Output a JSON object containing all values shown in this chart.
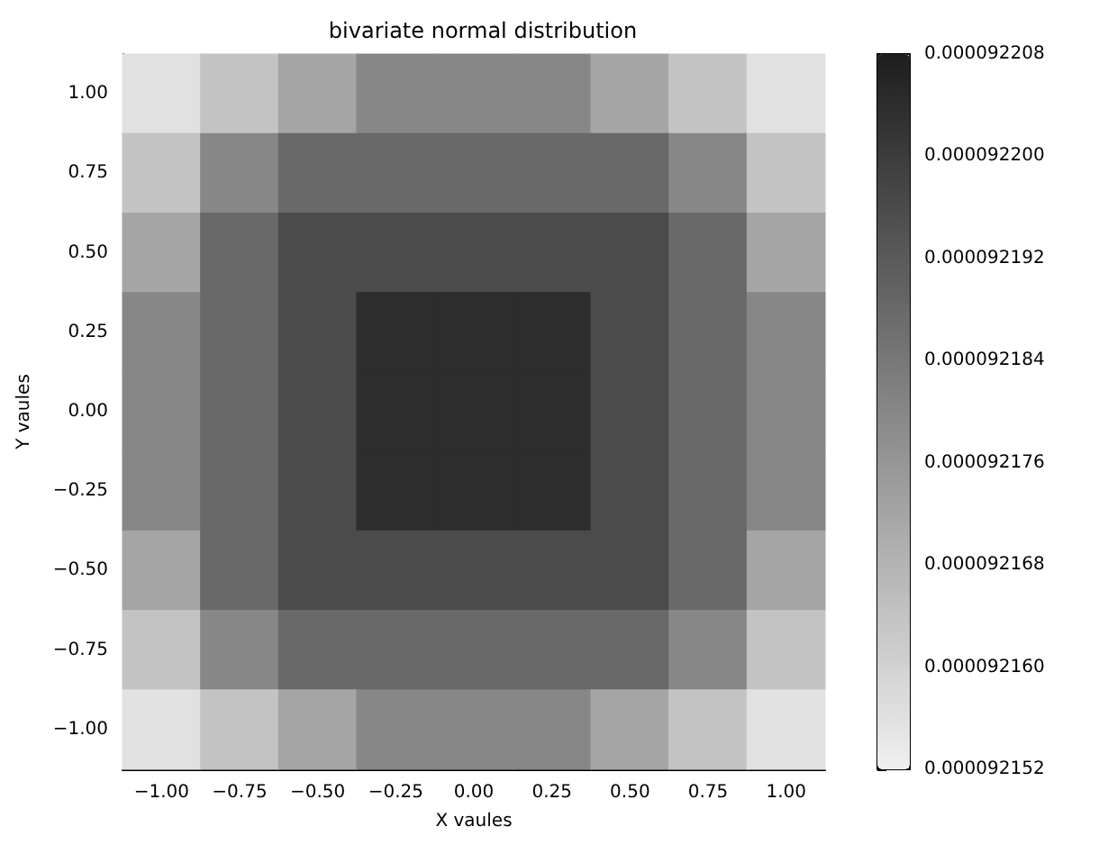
{
  "chart_data": {
    "type": "heatmap",
    "title": "bivariate normal distribution",
    "xlabel": "X vaules",
    "ylabel": "Y vaules",
    "categories": [
      "−1.00",
      "−0.75",
      "−0.50",
      "−0.25",
      "0.00",
      "0.25",
      "0.50",
      "0.75",
      "1.00"
    ],
    "y_categories": [
      "1.00",
      "0.75",
      "0.50",
      "0.25",
      "0.00",
      "−0.25",
      "−0.50",
      "−0.75",
      "−1.00"
    ],
    "cells": [
      [
        9.2156e-05,
        9.2164e-05,
        9.2172e-05,
        9.218e-05,
        9.218e-05,
        9.218e-05,
        9.2172e-05,
        9.2164e-05,
        9.2156e-05
      ],
      [
        9.2164e-05,
        9.218e-05,
        9.2188e-05,
        9.2188e-05,
        9.2188e-05,
        9.2188e-05,
        9.2188e-05,
        9.218e-05,
        9.2164e-05
      ],
      [
        9.2172e-05,
        9.2188e-05,
        9.2196e-05,
        9.2196e-05,
        9.2196e-05,
        9.2196e-05,
        9.2196e-05,
        9.2188e-05,
        9.2172e-05
      ],
      [
        9.218e-05,
        9.2188e-05,
        9.2196e-05,
        9.2204e-05,
        9.2204e-05,
        9.2204e-05,
        9.2196e-05,
        9.2188e-05,
        9.218e-05
      ],
      [
        9.218e-05,
        9.2188e-05,
        9.2196e-05,
        9.2204e-05,
        9.2204e-05,
        9.2204e-05,
        9.2196e-05,
        9.2188e-05,
        9.218e-05
      ],
      [
        9.218e-05,
        9.2188e-05,
        9.2196e-05,
        9.2204e-05,
        9.2204e-05,
        9.2204e-05,
        9.2196e-05,
        9.2188e-05,
        9.218e-05
      ],
      [
        9.2172e-05,
        9.2188e-05,
        9.2196e-05,
        9.2196e-05,
        9.2196e-05,
        9.2196e-05,
        9.2196e-05,
        9.2188e-05,
        9.2172e-05
      ],
      [
        9.2164e-05,
        9.218e-05,
        9.2188e-05,
        9.2188e-05,
        9.2188e-05,
        9.2188e-05,
        9.2188e-05,
        9.218e-05,
        9.2164e-05
      ],
      [
        9.2156e-05,
        9.2164e-05,
        9.2172e-05,
        9.218e-05,
        9.218e-05,
        9.218e-05,
        9.2172e-05,
        9.2164e-05,
        9.2156e-05
      ]
    ],
    "clim": [
      9.2152e-05,
      9.2208e-05
    ],
    "cticks": [
      {
        "value": 9.2152e-05,
        "label": "0.000092152"
      },
      {
        "value": 9.216e-05,
        "label": "0.000092160"
      },
      {
        "value": 9.2168e-05,
        "label": "0.000092168"
      },
      {
        "value": 9.2176e-05,
        "label": "0.000092176"
      },
      {
        "value": 9.2184e-05,
        "label": "0.000092184"
      },
      {
        "value": 9.2192e-05,
        "label": "0.000092192"
      },
      {
        "value": 9.22e-05,
        "label": "0.000092200"
      },
      {
        "value": 9.2208e-05,
        "label": "0.000092208"
      }
    ]
  }
}
